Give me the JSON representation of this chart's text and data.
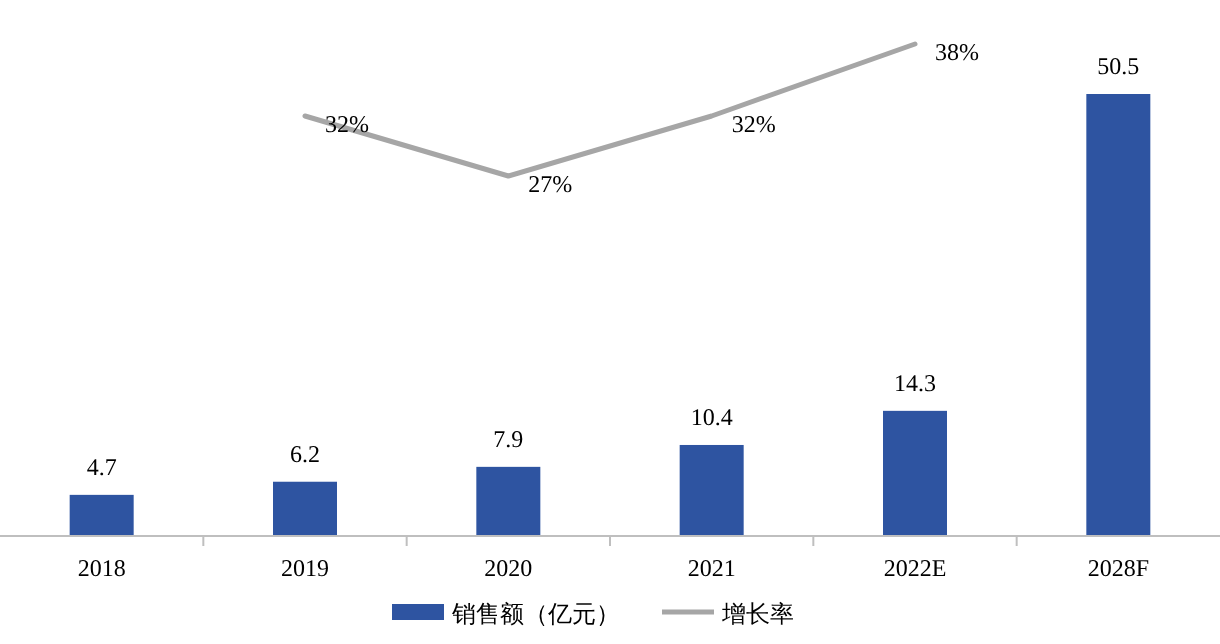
{
  "chart_data": {
    "type": "bar",
    "categories": [
      "2018",
      "2019",
      "2020",
      "2021",
      "2022E",
      "2028F"
    ],
    "series": [
      {
        "name": "销售额（亿元）",
        "color": "#2e54a1",
        "values": [
          4.7,
          6.2,
          7.9,
          10.4,
          14.3,
          50.5
        ],
        "data_labels": true
      },
      {
        "name": "增长率",
        "type": "line",
        "axis": "y2",
        "color": "#a6a6a6",
        "values": [
          null,
          32,
          27,
          32,
          38,
          null
        ],
        "value_labels": [
          null,
          "32%",
          "27%",
          "32%",
          "38%",
          null
        ]
      }
    ],
    "tick_labels": "x",
    "legend": "bottom"
  }
}
